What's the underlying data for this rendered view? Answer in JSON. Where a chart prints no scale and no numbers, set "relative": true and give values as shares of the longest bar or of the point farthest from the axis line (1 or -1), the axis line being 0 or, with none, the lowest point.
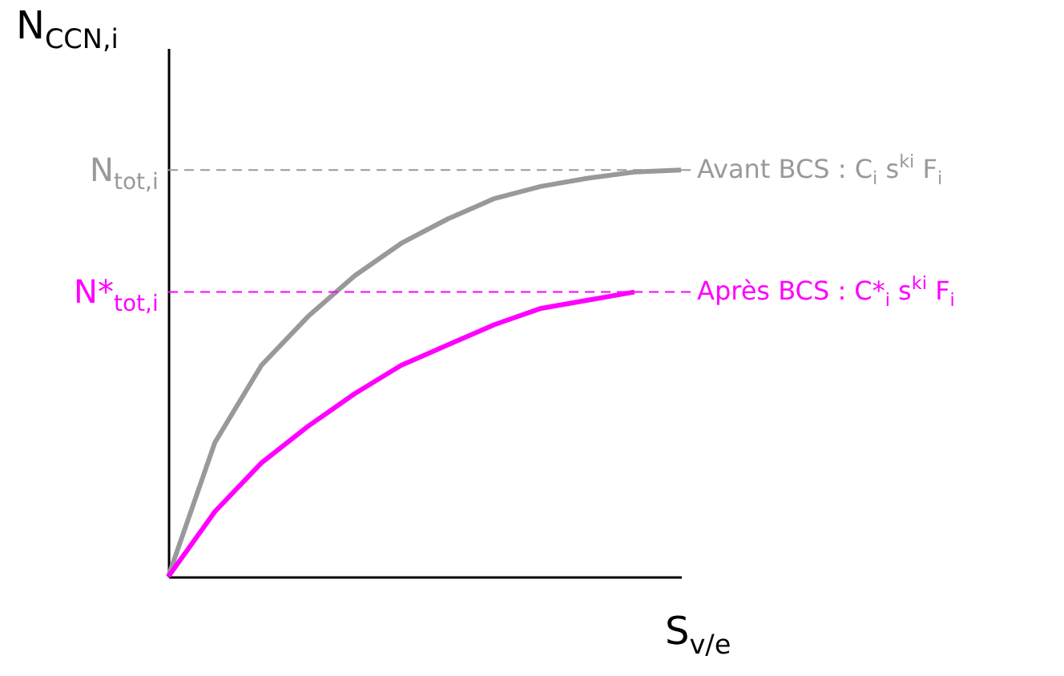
{
  "chart_data": {
    "type": "line",
    "relative": true,
    "xlabel": "S$_{v/e}$",
    "ylabel": "N$_{CCN,i}$",
    "categories": [
      null,
      null,
      null,
      null,
      null,
      null,
      null,
      null,
      null,
      null,
      null,
      null
    ],
    "series": [
      {
        "name": "Avant BCS : C$_{i}$ s$^{ki}$ F$_{i}$",
        "color": "#999999",
        "values": [
          0,
          0.33,
          0.52,
          0.64,
          0.74,
          0.82,
          0.88,
          0.93,
          0.96,
          0.98,
          0.995,
          1
        ]
      },
      {
        "name": "Après BCS : C*$_{i}$ s$^{ki}$ F$_{i}$",
        "color": "#ff00ff",
        "values": [
          0,
          0.16,
          0.28,
          0.37,
          0.45,
          0.52,
          0.57,
          0.62,
          0.66,
          0.68,
          0.7,
          null
        ]
      }
    ],
    "ref_lines": [
      {
        "axis": "y",
        "value": 1,
        "label": "N$_{tot,i}$",
        "color": "#999999",
        "line_style": "dashed"
      },
      {
        "axis": "y",
        "value": 0.7,
        "label": "N*$_{tot,i}$",
        "color": "#ff00ff",
        "line_style": "dashed"
      }
    ],
    "marker": "none",
    "line_style": "solid",
    "grid": false
  }
}
